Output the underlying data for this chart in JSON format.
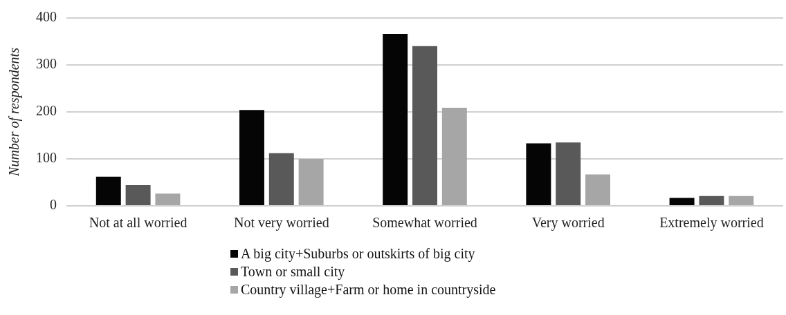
{
  "chart_data": {
    "type": "bar",
    "ylabel": "Number of respondents",
    "categories": [
      "Not at all worried",
      "Not very worried",
      "Somewhat worried",
      "Very worried",
      "Extremely worried"
    ],
    "series": [
      {
        "name": "A big city+Suburbs or outskirts of big city",
        "color": "#050505",
        "values": [
          62,
          204,
          366,
          133,
          17
        ]
      },
      {
        "name": "Town or small city",
        "color": "#595959",
        "values": [
          44,
          112,
          340,
          135,
          21
        ]
      },
      {
        "name": "Country village+Farm or home in countryside",
        "color": "#a6a6a6",
        "values": [
          26,
          100,
          209,
          67,
          21
        ]
      }
    ],
    "ylim": [
      0,
      400
    ],
    "yticks": [
      0,
      100,
      200,
      300,
      400
    ],
    "grid": "y",
    "legend": "bottom"
  }
}
